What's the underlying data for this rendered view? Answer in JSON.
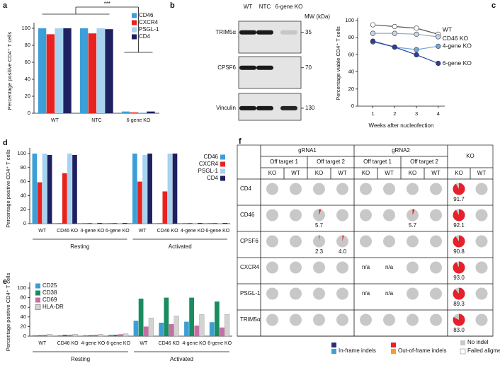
{
  "chart_data": [
    {
      "type": "bar",
      "panel": "a",
      "y_label": "Percentage positive CD4⁺ T cells",
      "annotation": "***",
      "categories": [
        "WT",
        "NTC",
        "6-gene KO"
      ],
      "series": [
        {
          "name": "CD46",
          "color": "#3d9fd8",
          "values": [
            100,
            100,
            2
          ]
        },
        {
          "name": "CXCR4",
          "color": "#e8231f",
          "values": [
            93,
            94,
            1
          ]
        },
        {
          "name": "PSGL-1",
          "color": "#a6d3f0",
          "values": [
            100,
            100,
            1
          ]
        },
        {
          "name": "CD4",
          "color": "#1e2060",
          "values": [
            100,
            99,
            2
          ]
        }
      ],
      "ylim": [
        0,
        100
      ],
      "yticks": [
        0,
        20,
        40,
        60,
        80,
        100
      ],
      "legend": "upper right"
    },
    {
      "type": "blot",
      "panel": "b",
      "lanes": [
        "WT",
        "NTC",
        "6-gene KO"
      ],
      "mw_label": "MW (kDa)",
      "rows": [
        {
          "name": "TRIM5α",
          "mw": 35
        },
        {
          "name": "CPSF6",
          "mw": 70
        },
        {
          "name": "Vinculin",
          "mw": 130
        }
      ]
    },
    {
      "type": "line",
      "panel": "c",
      "y_label": "Percentage viable CD4⁺ T cells",
      "x_label": "Weeks after nucleofection",
      "x": [
        1,
        2,
        3,
        4
      ],
      "series": [
        {
          "name": "WT",
          "color": "#ffffff",
          "line_color": "#555555",
          "values": [
            95,
            93,
            91,
            84
          ]
        },
        {
          "name": "CD46 KO",
          "color": "#c9d6e8",
          "line_color": "#9aaac4",
          "values": [
            85,
            85,
            84,
            81
          ]
        },
        {
          "name": "4-gene KO",
          "color": "#6fa8dc",
          "line_color": "#6fa8dc",
          "values": [
            75,
            69,
            66,
            70
          ]
        },
        {
          "name": "6-gene KO",
          "color": "#2a3ea0",
          "line_color": "#2a3ea0",
          "values": [
            76,
            69,
            60,
            50
          ]
        }
      ],
      "xlim": [
        0.3,
        4.3
      ],
      "xticks": [
        1,
        2,
        3,
        4
      ],
      "ylim": [
        0,
        100
      ],
      "yticks": [
        0,
        20,
        40,
        60,
        80,
        100
      ],
      "edgecolor": "#333333"
    },
    {
      "type": "bar",
      "panel": "d",
      "y_label": "Percentage positive CD4⁺ T cells",
      "categories": [
        "WT",
        "CD46 KO",
        "4-gene KO",
        "6-gene KO",
        "WT",
        "CD46 KO",
        "4-gene KO",
        "6-gene KO"
      ],
      "groups": [
        "Resting",
        "Activated"
      ],
      "series": [
        {
          "name": "CD46",
          "color": "#3d9fd8",
          "values": [
            100,
            1,
            1,
            1,
            100,
            1,
            1,
            1
          ]
        },
        {
          "name": "CXCR4",
          "color": "#e8231f",
          "values": [
            59,
            72,
            1,
            1,
            60,
            46,
            1,
            1
          ]
        },
        {
          "name": "PSGL-1",
          "color": "#a6d3f0",
          "values": [
            100,
            100,
            1,
            1,
            98,
            100,
            1,
            1
          ]
        },
        {
          "name": "CD4",
          "color": "#1e2060",
          "values": [
            98,
            98,
            1,
            1,
            100,
            100,
            1,
            1
          ]
        }
      ],
      "ylim": [
        0,
        100
      ],
      "yticks": [
        0,
        20,
        40,
        60,
        80,
        100
      ],
      "legend": "upper right"
    },
    {
      "type": "bar",
      "panel": "e",
      "y_label": "Percentage positive CD4⁺ T cells",
      "categories": [
        "WT",
        "CD46 KO",
        "4-gene KO",
        "6-gene KO",
        "WT",
        "CD46 KO",
        "4-gene KO",
        "6-gene KO"
      ],
      "groups": [
        "Resting",
        "Activated"
      ],
      "series": [
        {
          "name": "CD25",
          "color": "#3b9fd4",
          "values": [
            2,
            2,
            2,
            3,
            32,
            28,
            30,
            29
          ]
        },
        {
          "name": "CD38",
          "color": "#1a8d5f",
          "values": [
            2,
            3,
            2,
            3,
            78,
            80,
            80,
            72
          ]
        },
        {
          "name": "CD69",
          "color": "#c66fa4",
          "values": [
            3,
            3,
            3,
            4,
            20,
            25,
            22,
            18
          ]
        },
        {
          "name": "HLA-DR",
          "color": "#d3d3d3",
          "values": [
            4,
            4,
            4,
            5,
            38,
            42,
            45,
            45
          ]
        }
      ],
      "ylim": [
        0,
        100
      ],
      "yticks": [
        0,
        20,
        40,
        60,
        80,
        100
      ],
      "legend": "upper left"
    },
    {
      "type": "pie-table",
      "panel": "f",
      "groups": [
        {
          "name": "gRNA1",
          "subgroups": [
            "Off target 1",
            "Off target 2"
          ]
        },
        {
          "name": "gRNA2",
          "subgroups": [
            "Off target 1",
            "Off target 2"
          ]
        },
        {
          "name": "KO"
        }
      ],
      "column_labels": [
        "KO",
        "WT",
        "KO",
        "WT",
        "KO",
        "WT",
        "KO",
        "WT",
        "KO",
        "WT"
      ],
      "rows": [
        {
          "name": "CD4",
          "values": [
            0,
            0,
            0,
            0,
            0,
            0,
            0,
            0,
            91.7,
            0
          ]
        },
        {
          "name": "CD46",
          "values": [
            0,
            0,
            5.7,
            0,
            0,
            0,
            5.7,
            0,
            92.1,
            0
          ]
        },
        {
          "name": "CPSF6",
          "values": [
            0,
            0,
            2.3,
            4.0,
            0,
            0,
            0,
            0,
            90.8,
            0
          ],
          "value_labels": [
            null,
            null,
            null,
            "4.0",
            null,
            null,
            null,
            null,
            null,
            null
          ]
        },
        {
          "name": "CXCR4",
          "values": [
            0,
            0,
            0,
            0,
            null,
            null,
            0,
            0,
            93.0,
            0
          ],
          "value_labels": [
            null,
            null,
            null,
            null,
            "n/a",
            "n/a",
            null,
            null,
            "93.0",
            null
          ]
        },
        {
          "name": "PSGL-1",
          "values": [
            0,
            0,
            0,
            0,
            null,
            null,
            0,
            0,
            89.3,
            0
          ],
          "value_labels": [
            null,
            null,
            null,
            null,
            "n/a",
            "n/a",
            null,
            null,
            null,
            null
          ]
        },
        {
          "name": "TRIM5α",
          "values": [
            0,
            0,
            0,
            0,
            0,
            0,
            0,
            0,
            83.0,
            0
          ],
          "value_labels": [
            null,
            null,
            null,
            null,
            null,
            null,
            null,
            null,
            "83.0",
            null
          ]
        }
      ],
      "legend": [
        {
          "name": "In-frame indels",
          "colors": [
            "#2b2f7a",
            "#3aa0d8"
          ]
        },
        {
          "name": "Out-of-frame indels",
          "colors": [
            "#e8202a",
            "#f5a020"
          ]
        },
        {
          "name": "No indel",
          "colors": [
            "#c8c8c8"
          ]
        },
        {
          "name": "Failed aligment",
          "colors": [
            "#ffffff"
          ]
        }
      ]
    }
  ]
}
